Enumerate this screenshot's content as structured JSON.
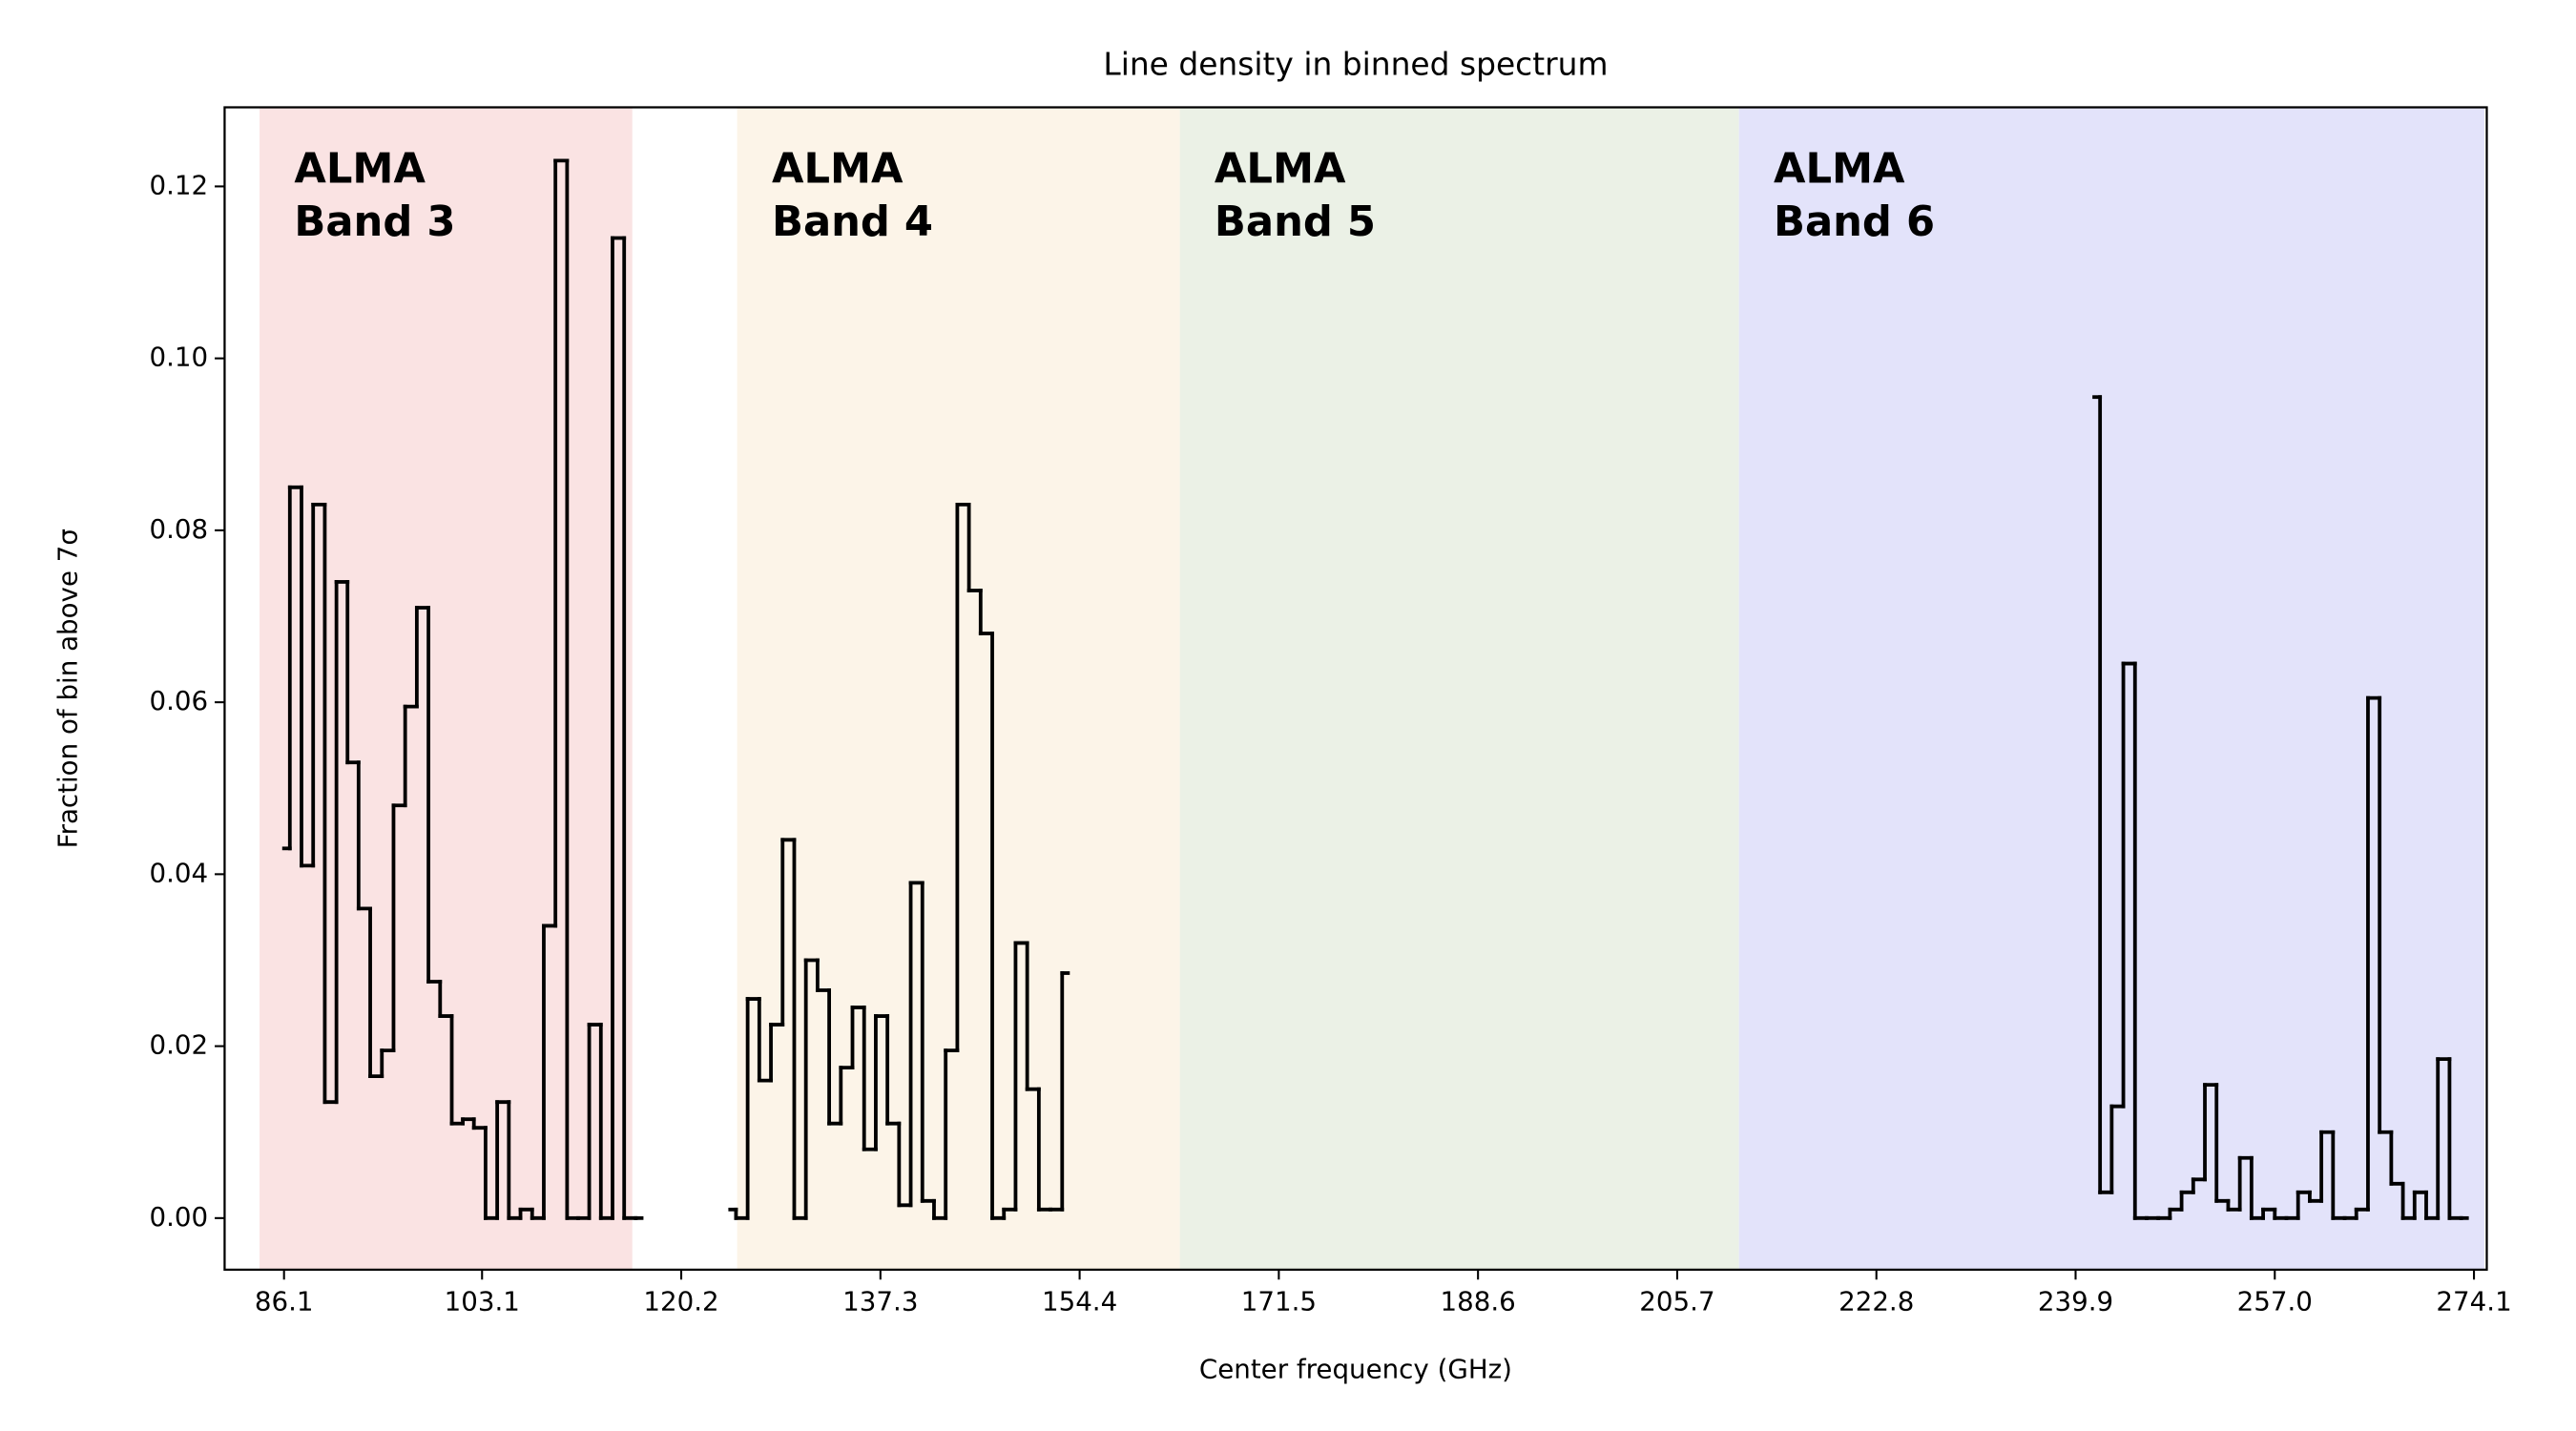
{
  "chart_data": {
    "type": "step",
    "title": "Line density in binned spectrum",
    "x_label": "Center frequency (GHz)",
    "y_label": "Fraction of bin above 7σ",
    "xlim": [
      81.0,
      275.2
    ],
    "ylim": [
      -0.006,
      0.1292
    ],
    "xticks": [
      86.1,
      103.1,
      120.2,
      137.3,
      154.4,
      171.5,
      188.6,
      205.7,
      222.8,
      239.9,
      {
        "value": 257,
        "label": "257.0"
      },
      274.1
    ],
    "yticks": [
      {
        "value": 0,
        "label": "0.00"
      },
      0.02,
      0.04,
      0.06,
      0.08,
      {
        "value": 0.1,
        "label": "0.10"
      },
      0.12
    ],
    "bands": [
      {
        "label": [
          "ALMA",
          "Band 3"
        ],
        "xrange": [
          84,
          116
        ],
        "fill": "#fae3e3",
        "text_color": "#dd0000"
      },
      {
        "label": [
          "ALMA",
          "Band 4"
        ],
        "xrange": [
          125,
          163
        ],
        "fill": "#fcf4e8",
        "text_color": "#e8a030"
      },
      {
        "label": [
          "ALMA",
          "Band 5"
        ],
        "xrange": [
          163,
          211
        ],
        "fill": "#ebf1e6",
        "text_color": "#4a7f20"
      },
      {
        "label": [
          "ALMA",
          "Band 6"
        ],
        "xrange": [
          211,
          275
        ],
        "fill": "#e3e3fa",
        "text_color": "#0000ee"
      }
    ],
    "series": [
      {
        "color": "#000000",
        "x": [
          86.1,
          87.1,
          88.1,
          89.1,
          90.1,
          91.1,
          92.0,
          93.0,
          94.0,
          95.0,
          96.0,
          97.0,
          98.0,
          99.0,
          100.0,
          101.0,
          101.9,
          102.9,
          103.9,
          104.9,
          105.9,
          106.9,
          107.9,
          108.9,
          109.9,
          110.9,
          111.8,
          112.8,
          113.8,
          114.8,
          115.8,
          116.8
        ],
        "values": [
          0.043,
          0.085,
          0.041,
          0.083,
          0.0135,
          0.074,
          0.053,
          0.036,
          0.0165,
          0.0195,
          0.048,
          0.0595,
          0.071,
          0.0275,
          0.0235,
          0.011,
          0.0115,
          0.0105,
          0,
          0.0135,
          0,
          0.001,
          0,
          0.034,
          0.123,
          0,
          0,
          0.0225,
          0,
          0.114,
          0,
          0
        ]
      },
      {
        "color": "#000000",
        "x": [
          124.4,
          125.4,
          126.4,
          127.4,
          128.4,
          129.4,
          130.4,
          131.4,
          132.4,
          133.4,
          134.4,
          135.4,
          136.4,
          137.4,
          138.4,
          139.4,
          140.4,
          141.4,
          142.4,
          143.4,
          144.4,
          145.4,
          146.4,
          147.4,
          148.4,
          149.4,
          150.4,
          151.4,
          152.4,
          153.4
        ],
        "values": [
          0.001,
          0,
          0.0255,
          0.016,
          0.0225,
          0.044,
          0,
          0.03,
          0.0265,
          0.011,
          0.0175,
          0.0245,
          0.008,
          0.0235,
          0.011,
          0.0015,
          0.039,
          0.002,
          0,
          0.0195,
          0.083,
          0.073,
          0.068,
          0,
          0.001,
          0.032,
          0.015,
          0.001,
          0.001,
          0.0285
        ]
      },
      {
        "color": "#000000",
        "x": [
          241.5,
          242.5,
          243.5,
          244.5,
          245.5,
          246.5,
          247.5,
          248.5,
          249.5,
          250.5,
          251.5,
          252.5,
          253.5,
          254.5,
          255.5,
          256.5,
          257.5,
          258.5,
          259.5,
          260.5,
          261.5,
          262.5,
          263.5,
          264.5,
          265.5,
          266.5,
          267.5,
          268.5,
          269.5,
          270.5,
          271.5,
          272.5,
          273.5
        ],
        "values": [
          0.0955,
          0.003,
          0.013,
          0.0645,
          0,
          0,
          0,
          0.001,
          0.003,
          0.0045,
          0.0155,
          0.002,
          0.001,
          0.007,
          0,
          0.001,
          0,
          0,
          0.003,
          0.002,
          0.01,
          0,
          0,
          0.001,
          0.0605,
          0.01,
          0.004,
          0,
          0.003,
          0,
          0.0185,
          0,
          0
        ]
      }
    ]
  }
}
